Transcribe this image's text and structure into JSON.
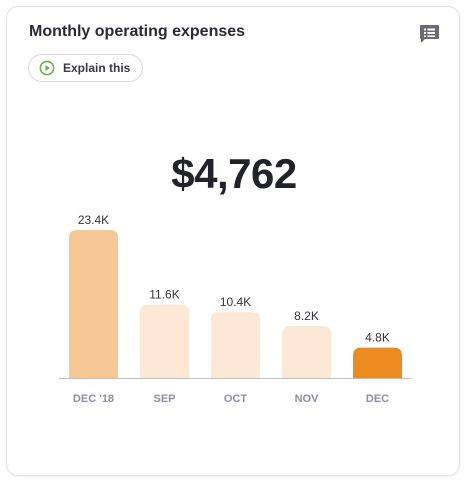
{
  "card": {
    "title": "Monthly operating expenses",
    "explain_label": "Explain this",
    "headline_value": "$4,762",
    "icons": {
      "comment": "comment-icon",
      "play": "play-circle-icon"
    }
  },
  "colors": {
    "highlight_first": "#f6c896",
    "muted": "#fce8d4",
    "current": "#ec8b20",
    "axis": "#bfbfc6",
    "tick_label": "#8e8ea8",
    "value_label": "#33333d",
    "play_icon": "#6ab04c"
  },
  "chart_data": {
    "type": "bar",
    "categories": [
      "DEC '18",
      "SEP",
      "OCT",
      "NOV",
      "DEC"
    ],
    "values": [
      23.4,
      11.6,
      10.4,
      8.2,
      4.8
    ],
    "value_labels": [
      "23.4K",
      "11.6K",
      "10.4K",
      "8.2K",
      "4.8K"
    ],
    "ylim": [
      0,
      23.4
    ],
    "grid": false,
    "legend": "none"
  }
}
